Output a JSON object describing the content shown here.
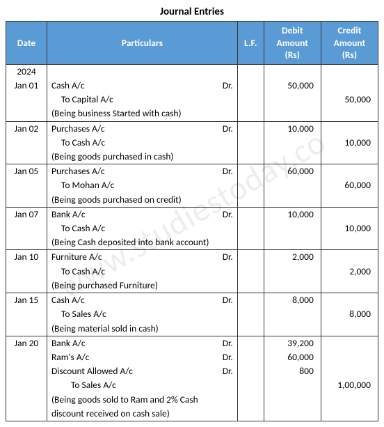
{
  "title": "Journal Entries",
  "watermark": "www.studiestoday.co",
  "header": {
    "date": "Date",
    "particulars": "Particulars",
    "lf": "L.F.",
    "debit_l1": "Debit",
    "debit_l2": "Amount",
    "debit_l3": "(Rs)",
    "credit_l1": "Credit",
    "credit_l2": "Amount",
    "credit_l3": "(Rs)"
  },
  "colors": {
    "header_bg": "#5b9bd5",
    "header_text": "#ffffff",
    "border": "#333333",
    "text": "#000000",
    "background": "#ffffff"
  },
  "year": "2024",
  "entries": [
    {
      "date": "Jan 01",
      "lines": [
        {
          "text": "Cash A/c",
          "dr": true,
          "debit": "50,000",
          "credit": "",
          "indent": 0
        },
        {
          "text": "To Capital A/c",
          "dr": false,
          "debit": "",
          "credit": "50,000",
          "indent": 1
        },
        {
          "text": "(Being business Started with cash)",
          "dr": false,
          "debit": "",
          "credit": "",
          "indent": 0
        }
      ]
    },
    {
      "date": "Jan 02",
      "lines": [
        {
          "text": "Purchases A/c",
          "dr": true,
          "debit": "10,000",
          "credit": "",
          "indent": 0
        },
        {
          "text": "To Cash A/c",
          "dr": false,
          "debit": "",
          "credit": "10,000",
          "indent": 1
        },
        {
          "text": "(Being goods purchased in cash)",
          "dr": false,
          "debit": "",
          "credit": "",
          "indent": 0
        }
      ]
    },
    {
      "date": "Jan 05",
      "lines": [
        {
          "text": "Purchases A/c",
          "dr": true,
          "debit": "60,000",
          "credit": "",
          "indent": 0
        },
        {
          "text": "To Mohan A/c",
          "dr": false,
          "debit": "",
          "credit": "60,000",
          "indent": 1
        },
        {
          "text": "(Being goods purchased on credit)",
          "dr": false,
          "debit": "",
          "credit": "",
          "indent": 0
        }
      ]
    },
    {
      "date": "Jan 07",
      "lines": [
        {
          "text": "Bank A/c",
          "dr": true,
          "debit": "10,000",
          "credit": "",
          "indent": 0
        },
        {
          "text": "To Cash A/c",
          "dr": false,
          "debit": "",
          "credit": "10,000",
          "indent": 1
        },
        {
          "text": "(Being Cash deposited into bank account)",
          "dr": false,
          "debit": "",
          "credit": "",
          "indent": 0
        }
      ]
    },
    {
      "date": "Jan 10",
      "lines": [
        {
          "text": "Furniture A/c",
          "dr": true,
          "debit": "2,000",
          "credit": "",
          "indent": 0
        },
        {
          "text": "To Cash A/c",
          "dr": false,
          "debit": "",
          "credit": "2,000",
          "indent": 1
        },
        {
          "text": "(Being purchased Furniture)",
          "dr": false,
          "debit": "",
          "credit": "",
          "indent": 0
        }
      ]
    },
    {
      "date": "Jan 15",
      "lines": [
        {
          "text": "Cash A/c",
          "dr": true,
          "debit": "8,000",
          "credit": "",
          "indent": 0
        },
        {
          "text": "To Sales A/c",
          "dr": false,
          "debit": "",
          "credit": "8,000",
          "indent": 1
        },
        {
          "text": "(Being material sold in cash)",
          "dr": false,
          "debit": "",
          "credit": "",
          "indent": 0
        }
      ]
    },
    {
      "date": "Jan 20",
      "lines": [
        {
          "text": "Bank A/c",
          "dr": true,
          "debit": "39,200",
          "credit": "",
          "indent": 0
        },
        {
          "text": "Ram's A/c",
          "dr": true,
          "debit": "60,000",
          "credit": "",
          "indent": 0
        },
        {
          "text": "Discount Allowed A/c",
          "dr": true,
          "debit": "800",
          "credit": "",
          "indent": 0
        },
        {
          "text": "To Sales A/c",
          "dr": false,
          "debit": "",
          "credit": "1,00,000",
          "indent": 2
        },
        {
          "text": "(Being goods sold to Ram and 2% Cash",
          "dr": false,
          "debit": "",
          "credit": "",
          "indent": 0
        },
        {
          "text": "discount received on cash sale)",
          "dr": false,
          "debit": "",
          "credit": "",
          "indent": 0
        }
      ]
    }
  ]
}
